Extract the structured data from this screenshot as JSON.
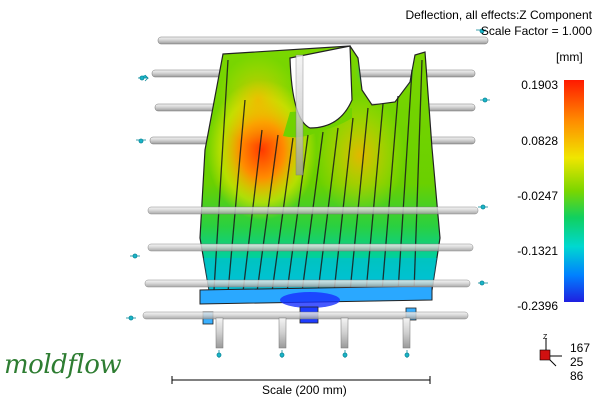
{
  "header": {
    "title": "Deflection, all effects:Z Component",
    "subtitle": "Scale Factor = 1.000"
  },
  "legend": {
    "unit": "[mm]",
    "ticks": [
      "0.1903",
      "0.0828",
      "-0.0247",
      "-0.1321",
      "-0.2396"
    ],
    "colors": {
      "max": "#ff1a00",
      "mid": "#7ad600",
      "min": "#1f1fe0"
    }
  },
  "scale": {
    "label": "Scale (200 mm)"
  },
  "triad": {
    "values": [
      "167",
      "25",
      "86"
    ]
  },
  "brand": {
    "logo_text": "moldflow"
  },
  "icons": [
    "constraint-arrow-icon",
    "triad-icon",
    "moldflow-logo-icon"
  ]
}
